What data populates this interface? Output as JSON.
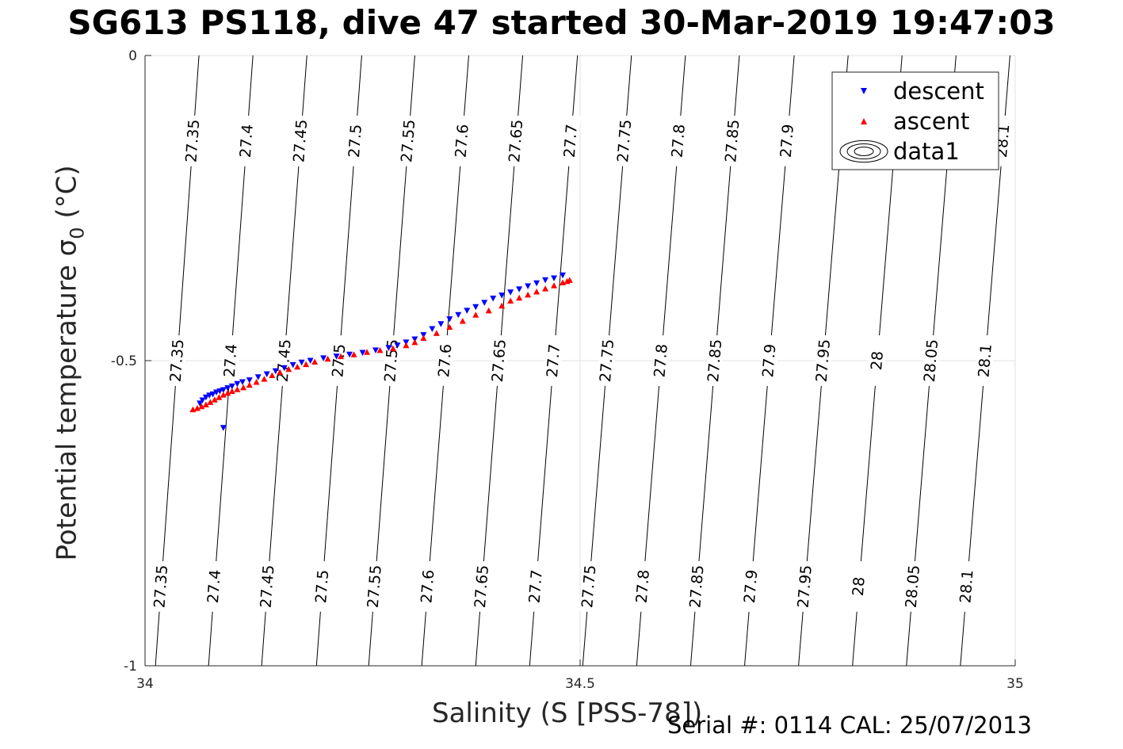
{
  "title": "SG613 PS118, dive 47 started 30-Mar-2019 19:47:03",
  "footer": "Serial #: 0114  CAL: 25/07/2013",
  "chart_data": {
    "type": "scatter",
    "xlabel": "Salinity (S [PSS-78])",
    "ylabel_main": "Potential temperature ",
    "ylabel_sym": "σ",
    "ylabel_sub": "0",
    "ylabel_unit": " (°C)",
    "xlim": [
      34,
      35
    ],
    "ylim": [
      -1,
      0
    ],
    "xticks": [
      34,
      34.5,
      35
    ],
    "xtick_labels": [
      "34",
      "34.5",
      "35"
    ],
    "yticks": [
      0,
      -0.5,
      -1
    ],
    "ytick_labels": [
      "0",
      "-0.5",
      "-1"
    ],
    "grid": true,
    "legend": {
      "placement": "top-right",
      "entries": [
        "descent",
        "ascent",
        "data1"
      ]
    },
    "colors": {
      "descent": "#0000ff",
      "ascent": "#ff0000",
      "contour": "#000000",
      "grid": "#e0e0e0"
    },
    "contours": {
      "levels": [
        27.35,
        27.4,
        27.45,
        27.5,
        27.55,
        27.6,
        27.65,
        27.7,
        27.75,
        27.8,
        27.85,
        27.9,
        27.95,
        28,
        28.05,
        28.1
      ],
      "labels": [
        "27.35",
        "27.4",
        "27.45",
        "27.5",
        "27.55",
        "27.6",
        "27.65",
        "27.7",
        "27.75",
        "27.8",
        "27.85",
        "27.9",
        "27.95",
        "28",
        "28.05",
        "28.1"
      ],
      "salinity_at_minus1": [
        34.012,
        34.073,
        34.134,
        34.197,
        34.257,
        34.318,
        34.38,
        34.442,
        34.503,
        34.565,
        34.627,
        34.689,
        34.751,
        34.813,
        34.875,
        34.937
      ],
      "salinity_at_0": [
        34.062,
        34.124,
        34.186,
        34.249,
        34.31,
        34.372,
        34.434,
        34.497,
        34.559,
        34.621,
        34.683,
        34.746,
        34.808,
        34.87,
        34.932,
        34.994
      ]
    },
    "series": [
      {
        "name": "descent",
        "marker": "triangle-down",
        "x": [
          34.063,
          34.066,
          34.07,
          34.074,
          34.078,
          34.082,
          34.086,
          34.09,
          34.095,
          34.1,
          34.106,
          34.112,
          34.12,
          34.13,
          34.14,
          34.15,
          34.16,
          34.17,
          34.18,
          34.19,
          34.205,
          34.22,
          34.235,
          34.25,
          34.265,
          34.28,
          34.29,
          34.3,
          34.31,
          34.32,
          34.33,
          34.34,
          34.35,
          34.36,
          34.37,
          34.38,
          34.39,
          34.4,
          34.41,
          34.42,
          34.43,
          34.44,
          34.45,
          34.46,
          34.47,
          34.48,
          34.09
        ],
        "y": [
          -0.57,
          -0.565,
          -0.56,
          -0.557,
          -0.555,
          -0.552,
          -0.55,
          -0.548,
          -0.545,
          -0.542,
          -0.538,
          -0.535,
          -0.532,
          -0.527,
          -0.522,
          -0.517,
          -0.512,
          -0.507,
          -0.503,
          -0.5,
          -0.496,
          -0.493,
          -0.49,
          -0.487,
          -0.483,
          -0.479,
          -0.475,
          -0.47,
          -0.465,
          -0.458,
          -0.448,
          -0.44,
          -0.432,
          -0.425,
          -0.418,
          -0.412,
          -0.405,
          -0.398,
          -0.393,
          -0.388,
          -0.383,
          -0.378,
          -0.373,
          -0.368,
          -0.365,
          -0.36,
          -0.61
        ]
      },
      {
        "name": "ascent",
        "marker": "triangle-up",
        "x": [
          34.055,
          34.06,
          34.065,
          34.07,
          34.075,
          34.08,
          34.085,
          34.09,
          34.095,
          34.1,
          34.106,
          34.113,
          34.12,
          34.128,
          34.137,
          34.146,
          34.155,
          34.165,
          34.175,
          34.185,
          34.195,
          34.21,
          34.225,
          34.24,
          34.255,
          34.27,
          34.285,
          34.3,
          34.31,
          34.32,
          34.335,
          34.35,
          34.365,
          34.38,
          34.395,
          34.41,
          34.42,
          34.43,
          34.44,
          34.45,
          34.46,
          34.47,
          34.48,
          34.485,
          34.488
        ],
        "y": [
          -0.58,
          -0.578,
          -0.575,
          -0.572,
          -0.568,
          -0.564,
          -0.56,
          -0.556,
          -0.553,
          -0.55,
          -0.547,
          -0.544,
          -0.54,
          -0.535,
          -0.53,
          -0.524,
          -0.519,
          -0.514,
          -0.51,
          -0.506,
          -0.502,
          -0.497,
          -0.493,
          -0.49,
          -0.486,
          -0.483,
          -0.48,
          -0.475,
          -0.47,
          -0.463,
          -0.455,
          -0.445,
          -0.435,
          -0.425,
          -0.418,
          -0.41,
          -0.402,
          -0.397,
          -0.392,
          -0.387,
          -0.382,
          -0.377,
          -0.372,
          -0.37,
          -0.368
        ]
      }
    ]
  }
}
